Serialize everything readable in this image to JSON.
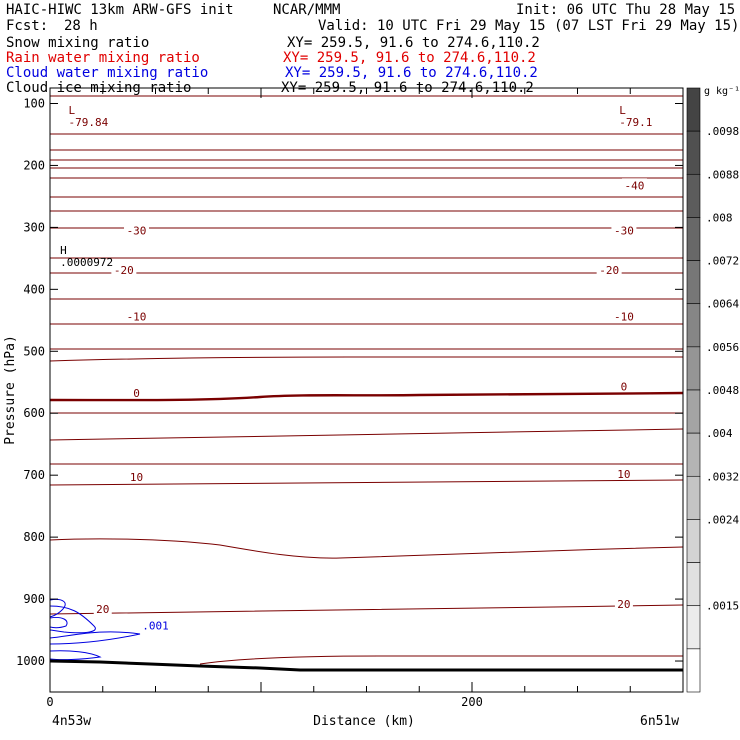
{
  "header": {
    "title": "HAIC-HIWC 13km ARW-GFS init",
    "org": "NCAR/MMM",
    "init": "Init: 06 UTC Thu 28 May 15",
    "fcst_label": "Fcst:",
    "fcst_value": "28 h",
    "valid": "Valid: 10 UTC Fri 29 May 15 (07 LST Fri 29 May 15)"
  },
  "fields": [
    {
      "name": "Snow mixing ratio",
      "xy": "XY= 259.5, 91.6 to 274.6,110.2",
      "color": "#000000"
    },
    {
      "name": "Rain water mixing ratio",
      "xy": "XY= 259.5, 91.6 to 274.6,110.2",
      "color": "#e00000"
    },
    {
      "name": "Cloud water mixing ratio",
      "xy": "XY= 259.5, 91.6 to 274.6,110.2",
      "color": "#0000e0"
    },
    {
      "name": "Cloud ice mixing ratio",
      "xy": "XY= 259.5, 91.6 to 274.6,110.2",
      "color": "#000000"
    }
  ],
  "chart_data": {
    "type": "contour",
    "xlabel": "Distance (km)",
    "ylabel": "Pressure (hPa)",
    "xlim": [
      0,
      300
    ],
    "ylim": [
      1050,
      75
    ],
    "x_ticks": [
      0,
      200
    ],
    "y_ticks": [
      100,
      200,
      300,
      400,
      500,
      600,
      700,
      800,
      900,
      1000
    ],
    "x_end_labels": {
      "left": "4n53w",
      "right": "6n51w"
    },
    "contour_color": "#7a0000",
    "cloud_water_color": "#0000e0",
    "contour_labels": [
      {
        "text": "-40",
        "x": 277,
        "p": 232
      },
      {
        "text": "-30",
        "x": 41,
        "p": 305
      },
      {
        "text": "-30",
        "x": 272,
        "p": 305
      },
      {
        "text": "-20",
        "x": 35,
        "p": 369
      },
      {
        "text": "-20",
        "x": 265,
        "p": 369
      },
      {
        "text": "-10",
        "x": 41,
        "p": 444
      },
      {
        "text": "-10",
        "x": 272,
        "p": 444
      },
      {
        "text": "0",
        "x": 41,
        "p": 567
      },
      {
        "text": "0",
        "x": 272,
        "p": 557
      },
      {
        "text": "10",
        "x": 41,
        "p": 703
      },
      {
        "text": "10",
        "x": 272,
        "p": 698
      },
      {
        "text": "20",
        "x": 25,
        "p": 916
      },
      {
        "text": "20",
        "x": 272,
        "p": 908
      },
      {
        "text": ".001",
        "x": 50,
        "p": 943
      }
    ],
    "extrema": [
      {
        "text": "L",
        "value": "-79.84",
        "x": 5,
        "p": 94
      },
      {
        "text": "L",
        "value": "-79.1",
        "x": 266,
        "p": 94
      },
      {
        "text": "H",
        "value": ".0000972",
        "x": 1,
        "p": 320
      }
    ],
    "colorbar": {
      "unit": "g kg⁻¹",
      "labels": [
        ".0098",
        ".0088",
        ".008",
        ".0072",
        ".0064",
        ".0056",
        ".0048",
        ".004",
        ".0032",
        ".0024",
        ".0015"
      ],
      "colors": [
        "#444444",
        "#505050",
        "#5c5c5c",
        "#686868",
        "#777777",
        "#868686",
        "#959595",
        "#a4a4a4",
        "#b4b4b4",
        "#c4c4c4",
        "#d3d3d3",
        "#e0e0e0",
        "#ececec",
        "#ffffff"
      ]
    }
  }
}
